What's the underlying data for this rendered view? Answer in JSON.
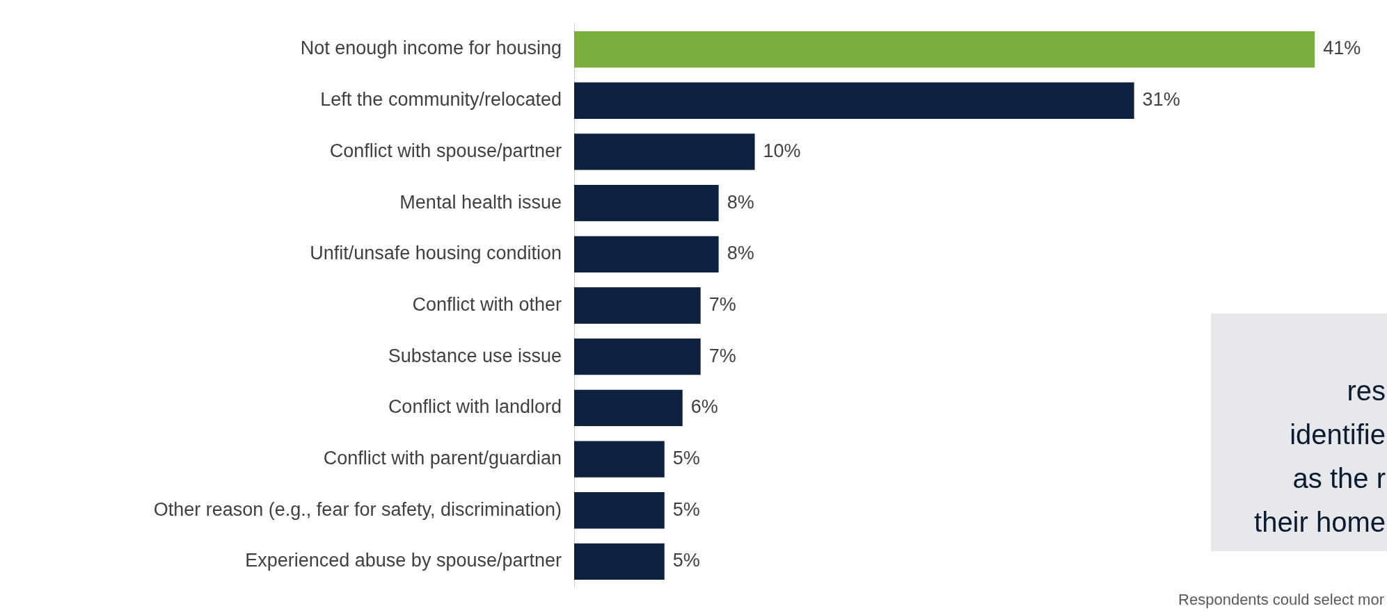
{
  "chart_data": {
    "type": "bar",
    "orientation": "horizontal",
    "categories": [
      "Not enough income for housing",
      "Left the community/relocated",
      "Conflict with spouse/partner",
      "Mental health issue",
      "Unfit/unsafe housing condition",
      "Conflict with other",
      "Substance use issue",
      "Conflict with landlord",
      "Conflict with parent/guardian",
      "Other reason (e.g., fear for safety, discrimination)",
      "Experienced abuse by spouse/partner"
    ],
    "values": [
      41,
      31,
      10,
      8,
      8,
      7,
      7,
      6,
      5,
      5,
      5
    ],
    "value_labels": [
      "41%",
      "31%",
      "10%",
      "8%",
      "8%",
      "7%",
      "7%",
      "6%",
      "5%",
      "5%",
      "5%"
    ],
    "colors": [
      "#7aaf3f",
      "#0e2240",
      "#0e2240",
      "#0e2240",
      "#0e2240",
      "#0e2240",
      "#0e2240",
      "#0e2240",
      "#0e2240",
      "#0e2240",
      "#0e2240"
    ],
    "xlim": [
      0,
      45
    ],
    "grid": false,
    "legend": false,
    "tick_labels": "y",
    "annotations": [
      "res\nidentifie\nas the r\ntheir home",
      "Respondents could select mor"
    ]
  }
}
